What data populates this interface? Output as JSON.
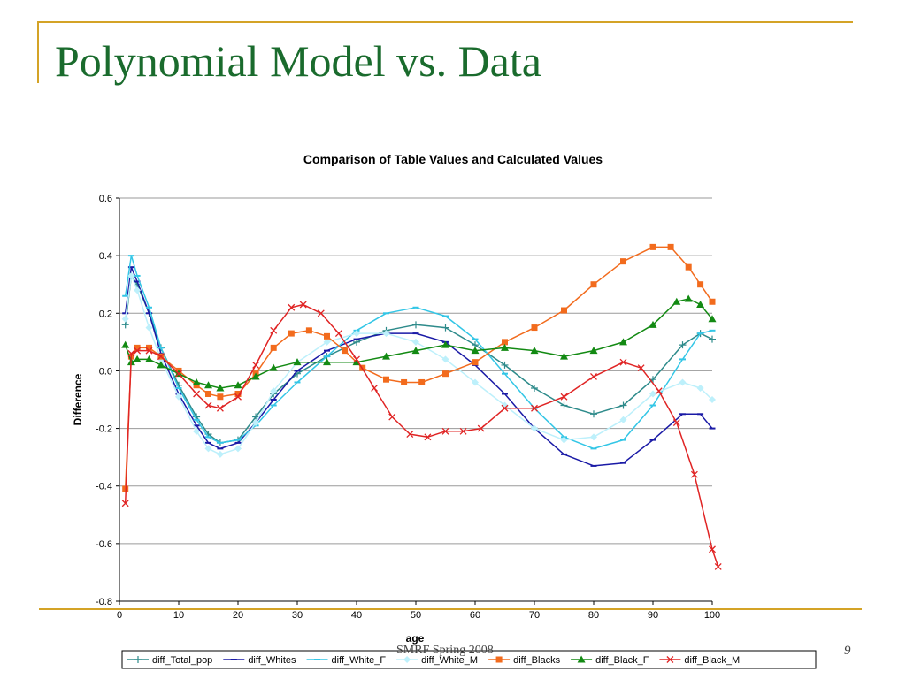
{
  "slide": {
    "title": "Polynomial Model vs. Data",
    "footer": "SMRF Spring 2008",
    "page_number": "9"
  },
  "colors": {
    "accent_rule": "#d4a326",
    "title_text": "#1a6b2d"
  },
  "chart_data": {
    "type": "line",
    "title": "Comparison of Table Values and Calculated Values",
    "xlabel": "age",
    "ylabel": "Difference",
    "xlim": [
      0,
      100
    ],
    "ylim": [
      -0.8,
      0.6
    ],
    "xticks": [
      0,
      10,
      20,
      30,
      40,
      50,
      60,
      70,
      80,
      90,
      100
    ],
    "yticks": [
      -0.8,
      -0.6,
      -0.4,
      -0.2,
      0.0,
      0.2,
      0.4,
      0.6
    ],
    "ytick_labels": [
      "-0.8",
      "-0.6",
      "-0.4",
      "-0.2",
      "0.0",
      "0.2",
      "0.4",
      "0.6"
    ],
    "grid": "horizontal",
    "legend_position": "bottom",
    "series": [
      {
        "name": "diff_Total_pop",
        "color": "#2e8b8b",
        "marker": "plus",
        "points": [
          [
            1,
            0.16
          ],
          [
            2,
            0.33
          ],
          [
            3,
            0.3
          ],
          [
            5,
            0.2
          ],
          [
            7,
            0.08
          ],
          [
            10,
            -0.05
          ],
          [
            13,
            -0.16
          ],
          [
            15,
            -0.22
          ],
          [
            17,
            -0.25
          ],
          [
            20,
            -0.24
          ],
          [
            23,
            -0.16
          ],
          [
            26,
            -0.08
          ],
          [
            30,
            -0.01
          ],
          [
            35,
            0.05
          ],
          [
            40,
            0.1
          ],
          [
            45,
            0.14
          ],
          [
            50,
            0.16
          ],
          [
            55,
            0.15
          ],
          [
            60,
            0.09
          ],
          [
            65,
            0.02
          ],
          [
            70,
            -0.06
          ],
          [
            75,
            -0.12
          ],
          [
            80,
            -0.15
          ],
          [
            85,
            -0.12
          ],
          [
            90,
            -0.03
          ],
          [
            95,
            0.09
          ],
          [
            98,
            0.13
          ],
          [
            100,
            0.11
          ]
        ]
      },
      {
        "name": "diff_Whites",
        "color": "#1a1aa6",
        "marker": "dash",
        "points": [
          [
            1,
            0.2
          ],
          [
            2,
            0.36
          ],
          [
            3,
            0.31
          ],
          [
            5,
            0.2
          ],
          [
            7,
            0.06
          ],
          [
            10,
            -0.08
          ],
          [
            13,
            -0.19
          ],
          [
            15,
            -0.25
          ],
          [
            17,
            -0.27
          ],
          [
            20,
            -0.25
          ],
          [
            23,
            -0.18
          ],
          [
            26,
            -0.1
          ],
          [
            30,
            0.0
          ],
          [
            35,
            0.07
          ],
          [
            40,
            0.11
          ],
          [
            45,
            0.13
          ],
          [
            50,
            0.13
          ],
          [
            55,
            0.1
          ],
          [
            60,
            0.02
          ],
          [
            65,
            -0.08
          ],
          [
            70,
            -0.2
          ],
          [
            75,
            -0.29
          ],
          [
            80,
            -0.33
          ],
          [
            85,
            -0.32
          ],
          [
            90,
            -0.24
          ],
          [
            95,
            -0.15
          ],
          [
            98,
            -0.15
          ],
          [
            100,
            -0.2
          ]
        ]
      },
      {
        "name": "diff_White_F",
        "color": "#33c6e6",
        "marker": "dash",
        "points": [
          [
            1,
            0.26
          ],
          [
            2,
            0.4
          ],
          [
            3,
            0.33
          ],
          [
            5,
            0.22
          ],
          [
            7,
            0.08
          ],
          [
            10,
            -0.06
          ],
          [
            13,
            -0.17
          ],
          [
            15,
            -0.23
          ],
          [
            17,
            -0.25
          ],
          [
            20,
            -0.24
          ],
          [
            23,
            -0.19
          ],
          [
            26,
            -0.12
          ],
          [
            30,
            -0.04
          ],
          [
            35,
            0.05
          ],
          [
            40,
            0.14
          ],
          [
            45,
            0.2
          ],
          [
            50,
            0.22
          ],
          [
            55,
            0.19
          ],
          [
            60,
            0.11
          ],
          [
            65,
            -0.01
          ],
          [
            70,
            -0.13
          ],
          [
            75,
            -0.23
          ],
          [
            80,
            -0.27
          ],
          [
            85,
            -0.24
          ],
          [
            90,
            -0.12
          ],
          [
            95,
            0.04
          ],
          [
            98,
            0.13
          ],
          [
            100,
            0.14
          ]
        ]
      },
      {
        "name": "diff_White_M",
        "color": "#bdf0fb",
        "marker": "diamond",
        "points": [
          [
            1,
            0.18
          ],
          [
            2,
            0.33
          ],
          [
            3,
            0.28
          ],
          [
            5,
            0.15
          ],
          [
            7,
            0.04
          ],
          [
            10,
            -0.09
          ],
          [
            13,
            -0.21
          ],
          [
            15,
            -0.27
          ],
          [
            17,
            -0.29
          ],
          [
            20,
            -0.27
          ],
          [
            23,
            -0.18
          ],
          [
            26,
            -0.07
          ],
          [
            30,
            0.03
          ],
          [
            35,
            0.1
          ],
          [
            40,
            0.13
          ],
          [
            45,
            0.13
          ],
          [
            50,
            0.1
          ],
          [
            55,
            0.04
          ],
          [
            60,
            -0.04
          ],
          [
            65,
            -0.12
          ],
          [
            70,
            -0.2
          ],
          [
            75,
            -0.24
          ],
          [
            80,
            -0.23
          ],
          [
            85,
            -0.17
          ],
          [
            90,
            -0.08
          ],
          [
            95,
            -0.04
          ],
          [
            98,
            -0.06
          ],
          [
            100,
            -0.1
          ]
        ]
      },
      {
        "name": "diff_Blacks",
        "color": "#f26b1d",
        "marker": "square",
        "points": [
          [
            1,
            -0.41
          ],
          [
            2,
            0.05
          ],
          [
            3,
            0.08
          ],
          [
            5,
            0.08
          ],
          [
            7,
            0.05
          ],
          [
            10,
            0.0
          ],
          [
            13,
            -0.05
          ],
          [
            15,
            -0.08
          ],
          [
            17,
            -0.09
          ],
          [
            20,
            -0.08
          ],
          [
            23,
            -0.01
          ],
          [
            26,
            0.08
          ],
          [
            29,
            0.13
          ],
          [
            32,
            0.14
          ],
          [
            35,
            0.12
          ],
          [
            38,
            0.07
          ],
          [
            41,
            0.01
          ],
          [
            45,
            -0.03
          ],
          [
            48,
            -0.04
          ],
          [
            51,
            -0.04
          ],
          [
            55,
            -0.01
          ],
          [
            60,
            0.03
          ],
          [
            65,
            0.1
          ],
          [
            70,
            0.15
          ],
          [
            75,
            0.21
          ],
          [
            80,
            0.3
          ],
          [
            85,
            0.38
          ],
          [
            90,
            0.43
          ],
          [
            93,
            0.43
          ],
          [
            96,
            0.36
          ],
          [
            98,
            0.3
          ],
          [
            100,
            0.24
          ]
        ]
      },
      {
        "name": "diff_Black_F",
        "color": "#138a13",
        "marker": "triangle",
        "points": [
          [
            1,
            0.09
          ],
          [
            2,
            0.03
          ],
          [
            3,
            0.04
          ],
          [
            5,
            0.04
          ],
          [
            7,
            0.02
          ],
          [
            10,
            -0.01
          ],
          [
            13,
            -0.04
          ],
          [
            15,
            -0.05
          ],
          [
            17,
            -0.06
          ],
          [
            20,
            -0.05
          ],
          [
            23,
            -0.02
          ],
          [
            26,
            0.01
          ],
          [
            30,
            0.03
          ],
          [
            35,
            0.03
          ],
          [
            40,
            0.03
          ],
          [
            45,
            0.05
          ],
          [
            50,
            0.07
          ],
          [
            55,
            0.09
          ],
          [
            60,
            0.07
          ],
          [
            65,
            0.08
          ],
          [
            70,
            0.07
          ],
          [
            75,
            0.05
          ],
          [
            80,
            0.07
          ],
          [
            85,
            0.1
          ],
          [
            90,
            0.16
          ],
          [
            94,
            0.24
          ],
          [
            96,
            0.25
          ],
          [
            98,
            0.23
          ],
          [
            100,
            0.18
          ]
        ]
      },
      {
        "name": "diff_Black_M",
        "color": "#e02424",
        "marker": "x",
        "points": [
          [
            1,
            -0.46
          ],
          [
            2,
            0.06
          ],
          [
            3,
            0.07
          ],
          [
            5,
            0.07
          ],
          [
            7,
            0.05
          ],
          [
            10,
            -0.01
          ],
          [
            13,
            -0.08
          ],
          [
            15,
            -0.12
          ],
          [
            17,
            -0.13
          ],
          [
            20,
            -0.09
          ],
          [
            23,
            0.02
          ],
          [
            26,
            0.14
          ],
          [
            29,
            0.22
          ],
          [
            31,
            0.23
          ],
          [
            34,
            0.2
          ],
          [
            37,
            0.13
          ],
          [
            40,
            0.04
          ],
          [
            43,
            -0.06
          ],
          [
            46,
            -0.16
          ],
          [
            49,
            -0.22
          ],
          [
            52,
            -0.23
          ],
          [
            55,
            -0.21
          ],
          [
            58,
            -0.21
          ],
          [
            61,
            -0.2
          ],
          [
            65,
            -0.13
          ],
          [
            70,
            -0.13
          ],
          [
            75,
            -0.09
          ],
          [
            80,
            -0.02
          ],
          [
            85,
            0.03
          ],
          [
            88,
            0.01
          ],
          [
            91,
            -0.07
          ],
          [
            94,
            -0.18
          ],
          [
            97,
            -0.36
          ],
          [
            100,
            -0.62
          ],
          [
            101,
            -0.68
          ]
        ]
      }
    ]
  }
}
